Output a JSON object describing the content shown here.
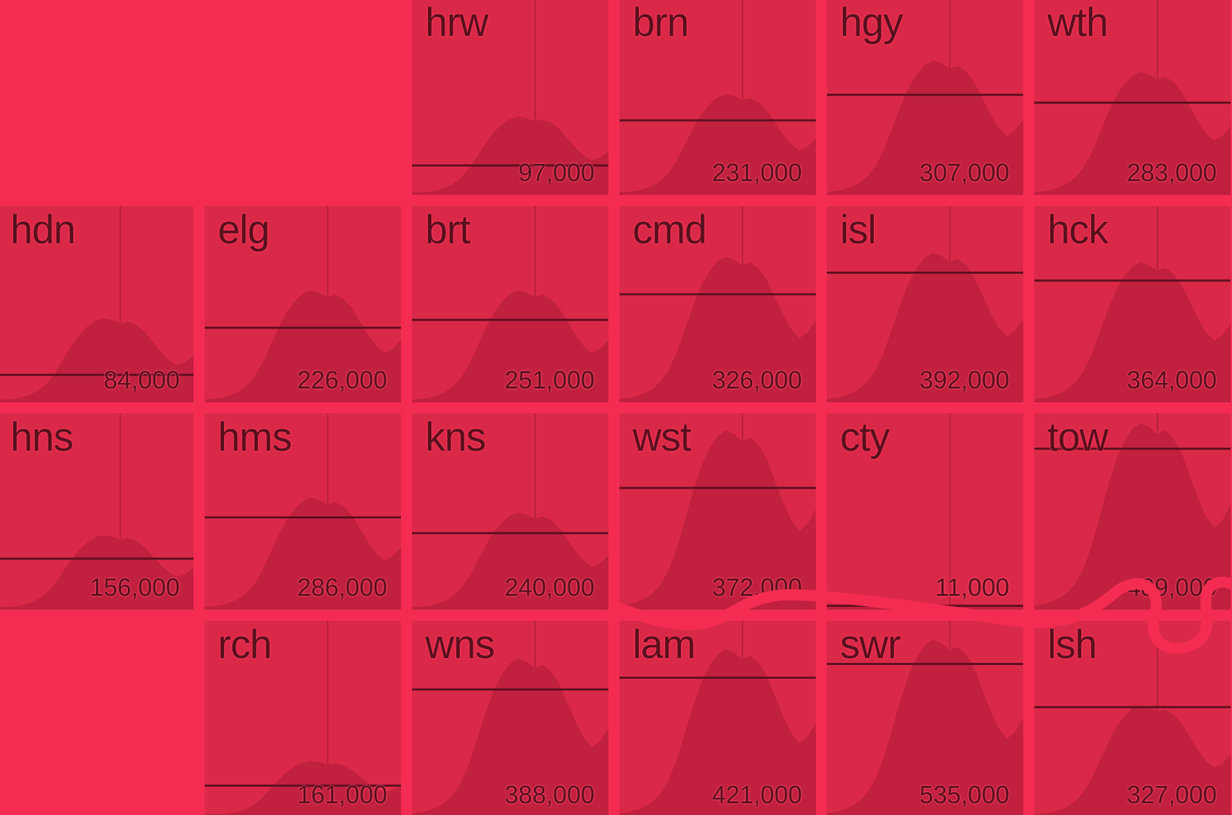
{
  "colors": {
    "background": "#f42c52",
    "tile": "#da2948",
    "area": "#c1203f",
    "line": "#5c0f1e",
    "text": "#57101d"
  },
  "chart_data": {
    "type": "area",
    "layout": "tile grid map",
    "tiles": [
      {
        "code": "hrw",
        "value": "97,000",
        "row": 0,
        "col": 2
      },
      {
        "code": "brn",
        "value": "231,000",
        "row": 0,
        "col": 3
      },
      {
        "code": "hgy",
        "value": "307,000",
        "row": 0,
        "col": 4
      },
      {
        "code": "wth",
        "value": "283,000",
        "row": 0,
        "col": 5
      },
      {
        "code": "hdn",
        "value": "84,000",
        "row": 1,
        "col": 0
      },
      {
        "code": "elg",
        "value": "226,000",
        "row": 1,
        "col": 1
      },
      {
        "code": "brt",
        "value": "251,000",
        "row": 1,
        "col": 2
      },
      {
        "code": "cmd",
        "value": "326,000",
        "row": 1,
        "col": 3
      },
      {
        "code": "isl",
        "value": "392,000",
        "row": 1,
        "col": 4
      },
      {
        "code": "hck",
        "value": "364,000",
        "row": 1,
        "col": 5
      },
      {
        "code": "hns",
        "value": "156,000",
        "row": 2,
        "col": 0
      },
      {
        "code": "hms",
        "value": "286,000",
        "row": 2,
        "col": 1
      },
      {
        "code": "kns",
        "value": "240,000",
        "row": 2,
        "col": 2
      },
      {
        "code": "wst",
        "value": "372,000",
        "row": 2,
        "col": 3
      },
      {
        "code": "cty",
        "value": "11,000",
        "row": 2,
        "col": 4
      },
      {
        "code": "tow",
        "value": "489,000",
        "row": 2,
        "col": 5
      },
      {
        "code": "rch",
        "value": "161,000",
        "row": 3,
        "col": 1
      },
      {
        "code": "wns",
        "value": "388,000",
        "row": 3,
        "col": 2
      },
      {
        "code": "lam",
        "value": "421,000",
        "row": 3,
        "col": 3
      },
      {
        "code": "swr",
        "value": "535,000",
        "row": 3,
        "col": 4
      },
      {
        "code": "lsh",
        "value": "327,000",
        "row": 3,
        "col": 5
      }
    ],
    "reference_line_level": [
      0.15,
      0.38,
      0.51,
      0.47,
      0.14,
      0.38,
      0.42,
      0.55,
      0.66,
      0.62,
      0.26,
      0.47,
      0.39,
      0.62,
      0.02,
      0.82,
      0.16,
      0.65,
      0.71,
      0.78,
      0.56
    ],
    "curve_scale": [
      0.42,
      0.54,
      0.72,
      0.66,
      0.45,
      0.6,
      0.6,
      0.78,
      0.8,
      0.75,
      0.4,
      0.6,
      0.52,
      0.96,
      0.03,
      1.0,
      0.3,
      0.85,
      0.9,
      0.95,
      0.6
    ]
  }
}
